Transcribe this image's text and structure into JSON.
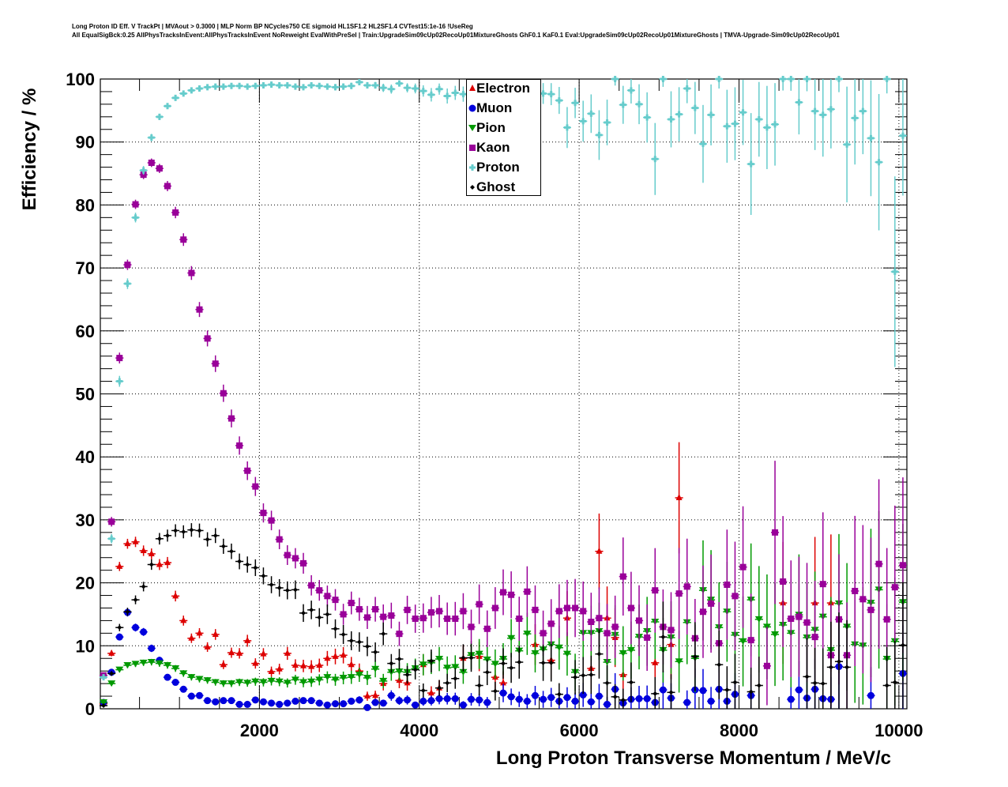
{
  "title_lines": [
    "Long Proton ID Eff. V TrackPt | MVAout > 0.3000 | MLP Norm BP NCycles750 CE sigmoid HL1SF1.2 HL2SF1.4 CVTest15:1e-16 !UseReg",
    "All EqualSigBck:0.25 AllPhysTracksInEvent:AllPhysTracksInEvent NoReweight EvalWithPreSel | Train:UpgradeSim09cUp02RecoUp01MixtureGhosts GhF0.1 KaF0.1 Eval:UpgradeSim09cUp02RecoUp01MixtureGhosts | TMVA-Upgrade-Sim09cUp02RecoUp01"
  ],
  "chart_data": {
    "type": "scatter",
    "xlabel": "Long Proton Transverse Momentum / MeV/c",
    "ylabel": "Efficiency / %",
    "xlim": [
      0,
      10100
    ],
    "ylim": [
      0,
      100
    ],
    "grid": true,
    "legend_position": "top-center",
    "x_ticks": [
      "2000",
      "4000",
      "6000",
      "8000",
      "10000"
    ],
    "x_tick_values": [
      2000,
      4000,
      6000,
      8000,
      10000
    ],
    "y_ticks": [
      "0",
      "10",
      "20",
      "30",
      "40",
      "50",
      "60",
      "70",
      "80",
      "90",
      "100"
    ],
    "y_tick_values": [
      0,
      10,
      20,
      30,
      40,
      50,
      60,
      70,
      80,
      90,
      100
    ],
    "bin_start": 0,
    "bin_width": 100,
    "series": [
      {
        "name": "Electron",
        "color": "#dd0000",
        "marker": "triangle-up",
        "values": [
          0.8,
          8.8,
          22.6,
          26.2,
          26.5,
          25.1,
          24.6,
          22.9,
          23.2,
          17.9,
          14.0,
          11.2,
          12.0,
          9.8,
          11.8,
          7.0,
          8.9,
          8.8,
          10.8,
          7.2,
          8.7,
          5.9,
          6.3,
          8.8,
          6.9,
          6.8,
          6.7,
          6.9,
          8.0,
          8.3,
          8.5,
          7.0,
          6.0,
          2.0,
          2.1,
          4.0,
          null,
          4.5,
          4.1,
          null,
          7.0,
          2.5,
          3.3,
          null,
          null,
          8.0,
          null,
          8.3,
          null,
          5.0,
          4.1,
          null,
          null,
          null,
          10.2,
          null,
          7.7,
          null,
          14.4,
          null,
          null,
          6.4,
          25.0,
          14.4,
          11.3,
          5.4,
          null,
          null,
          null,
          7.3,
          null,
          10.2,
          33.5,
          null,
          null,
          null,
          null,
          null,
          null,
          null,
          null,
          null,
          null,
          null,
          null,
          16.8,
          null,
          null,
          null,
          16.8,
          null,
          16.8,
          null,
          null,
          null,
          null,
          null,
          null,
          null,
          null,
          null
        ]
      },
      {
        "name": "Muon",
        "color": "#0000dd",
        "marker": "circle",
        "values": [
          1.0,
          5.8,
          11.4,
          15.3,
          12.9,
          12.2,
          9.6,
          7.7,
          5.0,
          4.2,
          3.1,
          2.0,
          2.1,
          1.3,
          1.1,
          1.3,
          1.3,
          0.7,
          0.7,
          1.4,
          1.1,
          0.9,
          0.7,
          0.9,
          1.2,
          1.3,
          1.3,
          0.9,
          0.6,
          0.8,
          0.8,
          1.2,
          1.4,
          0.2,
          1.0,
          0.9,
          2.1,
          1.3,
          1.4,
          0.6,
          1.2,
          1.3,
          1.6,
          1.6,
          1.6,
          0.6,
          1.5,
          1.4,
          1.0,
          null,
          2.5,
          1.9,
          1.5,
          1.2,
          2.1,
          1.5,
          1.8,
          1.2,
          1.8,
          1.2,
          2.2,
          1.1,
          2.0,
          0.7,
          3.1,
          0.9,
          1.5,
          1.6,
          1.6,
          1.0,
          3.0,
          1.7,
          null,
          1.0,
          3.0,
          2.9,
          1.2,
          3.1,
          1.2,
          2.3,
          null,
          2.1,
          null,
          null,
          null,
          null,
          1.5,
          3.0,
          1.7,
          3.1,
          1.6,
          1.5,
          6.7,
          null,
          null,
          null,
          2.1,
          null,
          null,
          null,
          5.6
        ]
      },
      {
        "name": "Pion",
        "color": "#009900",
        "marker": "triangle-down",
        "values": [
          1.0,
          4.0,
          6.2,
          6.9,
          7.1,
          7.3,
          7.4,
          7.2,
          6.9,
          6.4,
          5.6,
          5.0,
          4.7,
          4.5,
          4.2,
          4.0,
          4.0,
          4.2,
          4.1,
          4.3,
          4.2,
          4.4,
          4.3,
          4.1,
          4.6,
          4.2,
          4.3,
          4.6,
          5.0,
          4.6,
          4.9,
          5.0,
          5.4,
          4.9,
          6.3,
          4.4,
          5.8,
          5.9,
          5.8,
          6.4,
          7.0,
          7.3,
          7.9,
          6.5,
          6.6,
          5.8,
          8.5,
          8.7,
          7.8,
          7.1,
          7.9,
          11.2,
          9.2,
          11.9,
          8.8,
          9.4,
          10.2,
          9.7,
          8.7,
          5.8,
          12.0,
          12.0,
          12.3,
          7.4,
          11.7,
          8.8,
          9.3,
          11.4,
          12.3,
          13.8,
          9.3,
          11.3,
          7.5,
          13.7,
          8.0,
          18.8,
          17.3,
          12.9,
          15.4,
          11.7,
          10.7,
          17.3,
          14.2,
          13.0,
          11.8,
          13.3,
          12.0,
          14.9,
          11.3,
          12.5,
          14.6,
          9.3,
          16.7,
          13.0,
          10.2,
          10.0,
          16.8,
          18.9,
          7.9,
          10.7,
          16.9
        ]
      },
      {
        "name": "Kaon",
        "color": "#990099",
        "marker": "square",
        "values": [
          5.3,
          29.7,
          55.7,
          70.5,
          80.1,
          84.8,
          86.7,
          85.8,
          83.0,
          78.8,
          74.5,
          69.2,
          63.4,
          58.8,
          54.8,
          50.1,
          46.1,
          41.8,
          37.8,
          35.3,
          31.1,
          29.9,
          26.9,
          24.4,
          23.9,
          23.1,
          19.6,
          18.8,
          17.9,
          17.3,
          15.0,
          16.8,
          15.8,
          14.5,
          15.8,
          14.6,
          14.8,
          11.9,
          15.7,
          14.3,
          14.4,
          15.3,
          15.5,
          14.3,
          14.3,
          15.5,
          13.0,
          16.6,
          12.7,
          16.0,
          18.5,
          18.1,
          14.3,
          18.6,
          15.7,
          12.0,
          13.5,
          15.5,
          16.0,
          16.0,
          15.5,
          13.8,
          14.4,
          12.0,
          13.0,
          21.0,
          16.0,
          14.0,
          11.3,
          18.8,
          13.0,
          12.5,
          18.3,
          19.4,
          11.2,
          15.4,
          16.7,
          10.4,
          19.7,
          17.9,
          22.5,
          10.9,
          null,
          6.8,
          28.0,
          20.2,
          14.3,
          14.6,
          13.7,
          11.4,
          19.8,
          8.5,
          14.2,
          8.5,
          18.7,
          17.4,
          15.7,
          23.0,
          14.2,
          19.3,
          22.8
        ]
      },
      {
        "name": "Proton",
        "color": "#66cccc",
        "marker": "cross",
        "values": [
          5.0,
          27.0,
          52.0,
          67.5,
          78.0,
          85.5,
          90.7,
          94.0,
          95.7,
          97.0,
          97.7,
          98.2,
          98.5,
          98.7,
          98.8,
          98.8,
          98.9,
          98.9,
          98.8,
          98.9,
          99.0,
          99.1,
          99.0,
          99.0,
          98.8,
          98.7,
          99.0,
          98.9,
          98.8,
          98.7,
          98.8,
          98.9,
          99.5,
          99.0,
          99.0,
          98.6,
          98.4,
          99.3,
          98.6,
          98.5,
          98.1,
          97.5,
          98.4,
          97.3,
          97.8,
          97.6,
          97.8,
          98.4,
          98.2,
          98.0,
          97.8,
          98.0,
          97.9,
          97.6,
          97.8,
          97.7,
          97.6,
          96.6,
          92.3,
          96.2,
          93.3,
          94.5,
          91.1,
          93.1,
          100.0,
          95.9,
          98.2,
          96.0,
          93.9,
          87.3,
          100.0,
          93.6,
          94.4,
          98.5,
          95.4,
          89.7,
          94.3,
          100.0,
          92.5,
          92.9,
          94.7,
          86.5,
          93.6,
          92.3,
          92.8,
          100.0,
          100.0,
          96.3,
          100.0,
          94.9,
          94.3,
          95.2,
          100.0,
          89.6,
          93.8,
          94.9,
          90.6,
          86.8,
          100.0,
          69.4,
          91.0
        ]
      },
      {
        "name": "Ghost",
        "color": "#000000",
        "marker": "diamond",
        "values": [
          0.5,
          5.6,
          12.9,
          15.4,
          17.3,
          19.4,
          22.9,
          27.0,
          27.5,
          28.3,
          28.1,
          28.4,
          28.3,
          26.9,
          27.5,
          25.8,
          25.0,
          23.4,
          22.9,
          22.4,
          21.1,
          19.7,
          19.2,
          18.8,
          18.9,
          15.2,
          15.7,
          14.5,
          15.0,
          12.7,
          11.8,
          10.8,
          10.6,
          9.9,
          9.0,
          11.9,
          7.2,
          7.9,
          5.4,
          6.2,
          2.9,
          7.6,
          3.3,
          4.1,
          4.8,
          8.1,
          8.1,
          3.7,
          5.8,
          2.8,
          7.2,
          6.5,
          7.4,
          null,
          null,
          7.3,
          7.3,
          2.3,
          null,
          5.0,
          5.3,
          5.4,
          8.7,
          4.1,
          1.9,
          1.4,
          4.2,
          null,
          null,
          2.4,
          11.4,
          2.6,
          null,
          null,
          8.3,
          null,
          null,
          7.0,
          3.0,
          4.2,
          null,
          2.7,
          3.7,
          null,
          null,
          null,
          null,
          null,
          5.1,
          4.1,
          4.0,
          6.6,
          7.5,
          6.6,
          null,
          null,
          null,
          null,
          3.7,
          4.2,
          10.1
        ]
      }
    ]
  }
}
